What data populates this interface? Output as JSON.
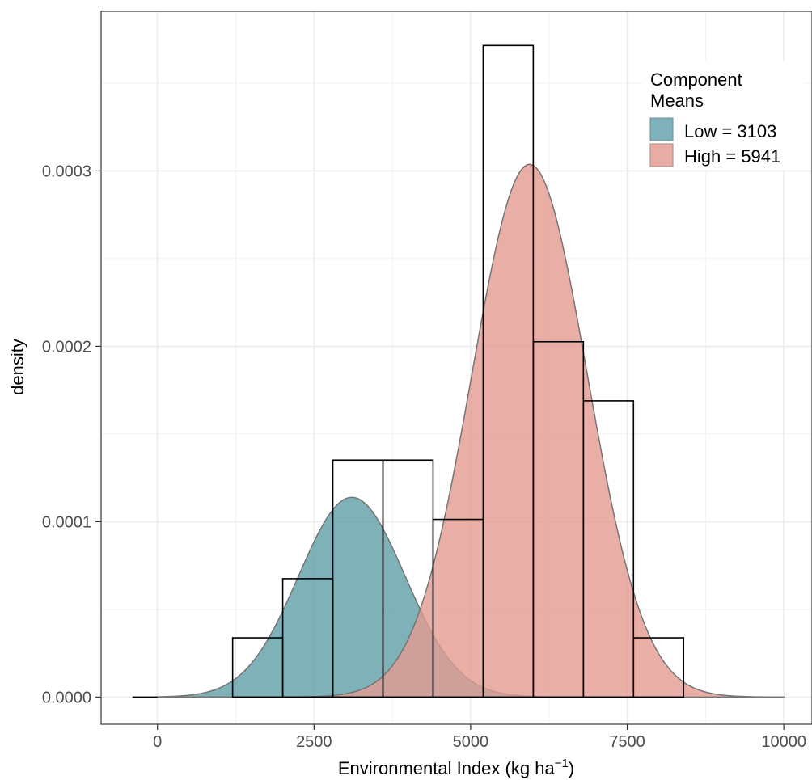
{
  "chart_data": {
    "type": "histogram_with_density",
    "xlabel": "Environmental Index (kg ha",
    "xlabel_sup": "−1",
    "xlabel_close": ")",
    "ylabel": "density",
    "xlim": [
      -900,
      10450
    ],
    "ylim": [
      -1.55e-05,
      0.000391
    ],
    "x_ticks": [
      0,
      2500,
      5000,
      7500,
      10000
    ],
    "x_tick_labels": [
      "0",
      "2500",
      "5000",
      "7500",
      "10000"
    ],
    "y_ticks": [
      0.0,
      0.0001,
      0.0002,
      0.0003
    ],
    "y_tick_labels": [
      "0.0000",
      "0.0001",
      "0.0002",
      "0.0003"
    ],
    "grid": true,
    "histogram": {
      "bins": [
        {
          "x0": -400,
          "x1": 0,
          "density": 0.0
        },
        {
          "x0": 1200,
          "x1": 2000,
          "density": 3.38e-05
        },
        {
          "x0": 2000,
          "x1": 2800,
          "density": 6.75e-05
        },
        {
          "x0": 2800,
          "x1": 3600,
          "density": 0.0001351
        },
        {
          "x0": 3600,
          "x1": 4400,
          "density": 0.0001351
        },
        {
          "x0": 4400,
          "x1": 5200,
          "density": 0.0001013
        },
        {
          "x0": 5200,
          "x1": 6000,
          "density": 0.0003715
        },
        {
          "x0": 6000,
          "x1": 6800,
          "density": 0.0002026
        },
        {
          "x0": 6800,
          "x1": 7600,
          "density": 0.0001689
        },
        {
          "x0": 7600,
          "x1": 8400,
          "density": 3.38e-05
        }
      ]
    },
    "components": [
      {
        "name": "Low",
        "mean": 3103,
        "sd": 850,
        "peak_density": 0.0001139,
        "color": "#5f9ea8"
      },
      {
        "name": "High",
        "mean": 5941,
        "sd": 920,
        "peak_density": 0.0003038,
        "color": "#e49b91"
      }
    ],
    "curve_range": [
      0,
      10000
    ],
    "legend": {
      "title_line1": "Component",
      "title_line2": "Means",
      "position": "top-right",
      "entries": [
        {
          "label": "Low =  3103",
          "color": "#7fb1ba",
          "stroke": "#6b8f96"
        },
        {
          "label": "High = 5941",
          "color": "#e8aea6",
          "stroke": "#a08a86"
        }
      ]
    }
  }
}
